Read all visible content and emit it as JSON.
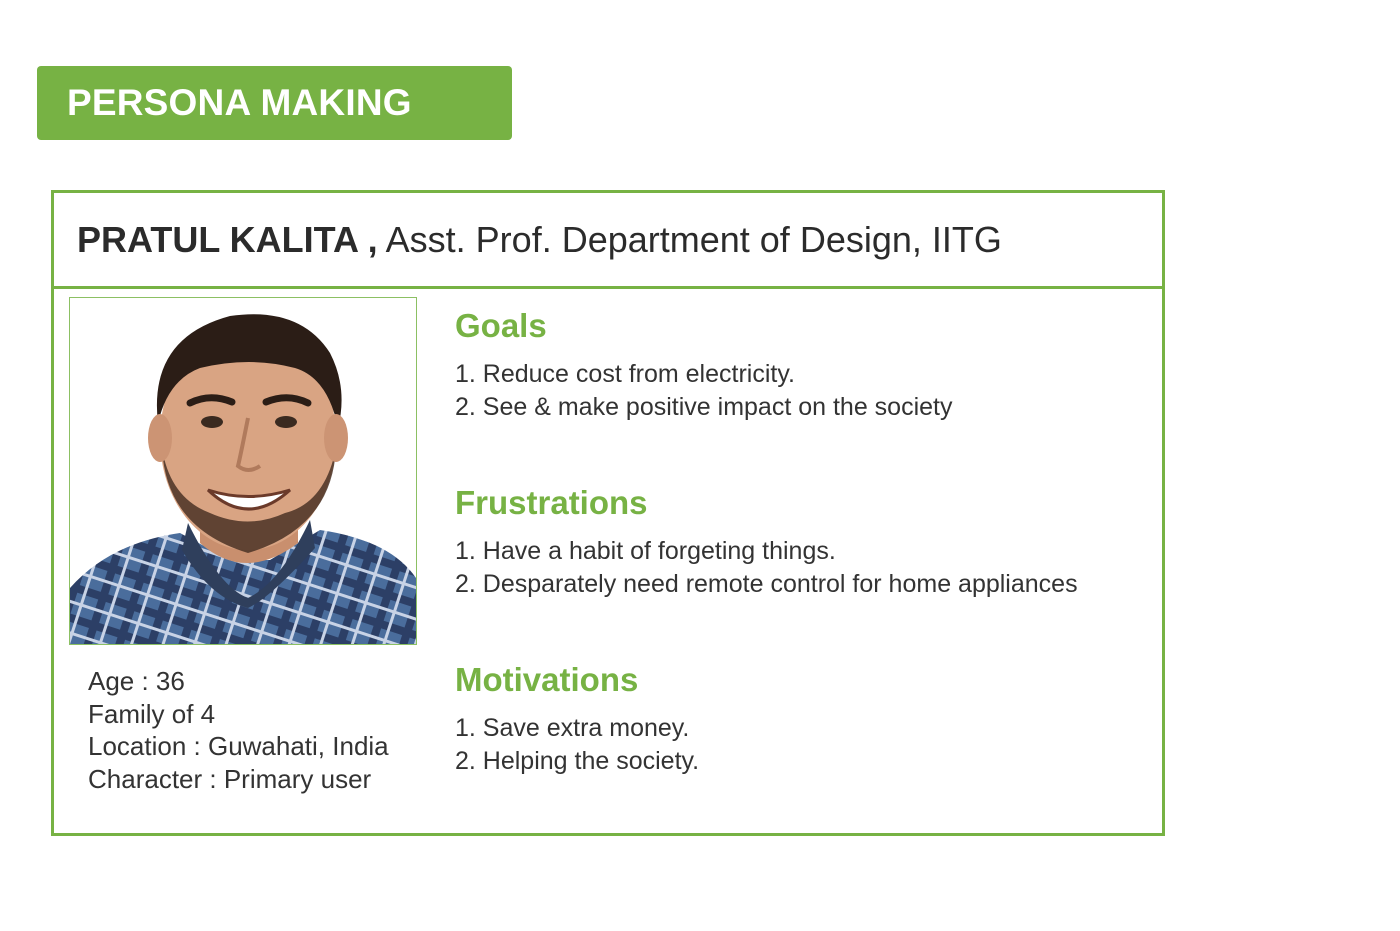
{
  "banner": {
    "title": "PERSONA MAKING"
  },
  "persona": {
    "name": "PRATUL KALITA ,",
    "role": " Asst. Prof. Department of Design, IITG",
    "details": [
      "Age : 36",
      "Family of 4",
      "Location : Guwahati, India",
      "Character : Primary user"
    ]
  },
  "sections": {
    "goals": {
      "heading": "Goals",
      "items": [
        "1. Reduce cost from electricity.",
        "2. See & make positive impact on the society"
      ]
    },
    "frustrations": {
      "heading": "Frustrations",
      "items": [
        "1. Have a habit of forgeting things.",
        "2. Desparately need remote control for home appliances"
      ]
    },
    "motivations": {
      "heading": "Motivations",
      "items": [
        "1. Save extra money.",
        "2. Helping the society."
      ]
    }
  },
  "colors": {
    "accent": "#77b244",
    "text": "#333333",
    "border": "#77b244"
  }
}
